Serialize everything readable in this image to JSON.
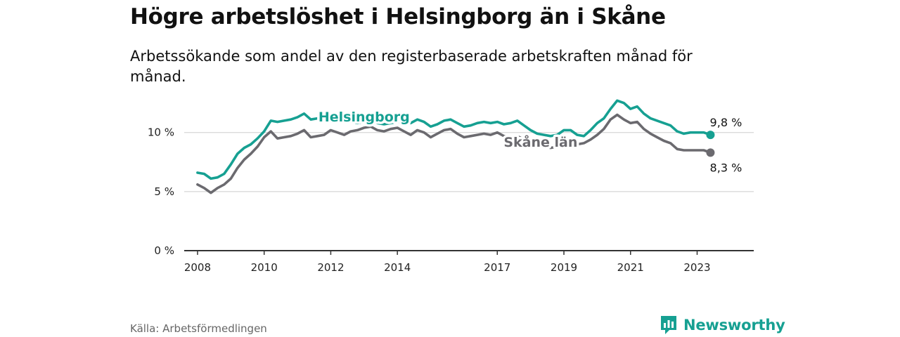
{
  "title": "Högre arbetslöshet i Helsingborg än i Skåne",
  "subtitle": "Arbetssökande som andel av den registerbaserade arbetskraften månad för månad.",
  "source": "Källa: Arbetsförmedlingen",
  "logo": {
    "text": "Newsworthy",
    "icon": "newsworthy-chart-icon"
  },
  "colors": {
    "helsingborg": "#16a092",
    "skane": "#6b6a6f",
    "grid": "#d6d6d6",
    "axis": "#333333"
  },
  "chart_data": {
    "type": "line",
    "x_unit": "year",
    "xlim": [
      2007.6,
      2024.7
    ],
    "ylim": [
      0,
      12.6
    ],
    "y_ticks": [
      {
        "value": 0,
        "label": "0 %"
      },
      {
        "value": 5,
        "label": "5 %"
      },
      {
        "value": 10,
        "label": "10 %"
      }
    ],
    "x_ticks": [
      {
        "value": 2008,
        "label": "2008"
      },
      {
        "value": 2010,
        "label": "2010"
      },
      {
        "value": 2012,
        "label": "2012"
      },
      {
        "value": 2014,
        "label": "2014"
      },
      {
        "value": 2017,
        "label": "2017"
      },
      {
        "value": 2019,
        "label": "2019"
      },
      {
        "value": 2021,
        "label": "2021"
      },
      {
        "value": 2023,
        "label": "2023"
      }
    ],
    "x": [
      2008.0,
      2008.2,
      2008.4,
      2008.6,
      2008.8,
      2009.0,
      2009.2,
      2009.4,
      2009.6,
      2009.8,
      2010.0,
      2010.2,
      2010.4,
      2010.6,
      2010.8,
      2011.0,
      2011.2,
      2011.4,
      2011.6,
      2011.8,
      2012.0,
      2012.2,
      2012.4,
      2012.6,
      2012.8,
      2013.0,
      2013.2,
      2013.4,
      2013.6,
      2013.8,
      2014.0,
      2014.2,
      2014.4,
      2014.6,
      2014.8,
      2015.0,
      2015.2,
      2015.4,
      2015.6,
      2015.8,
      2016.0,
      2016.2,
      2016.4,
      2016.6,
      2016.8,
      2017.0,
      2017.2,
      2017.4,
      2017.6,
      2017.8,
      2018.0,
      2018.2,
      2018.4,
      2018.6,
      2018.8,
      2019.0,
      2019.2,
      2019.4,
      2019.6,
      2019.8,
      2020.0,
      2020.2,
      2020.4,
      2020.6,
      2020.8,
      2021.0,
      2021.2,
      2021.4,
      2021.6,
      2021.8,
      2022.0,
      2022.2,
      2022.4,
      2022.6,
      2022.8,
      2023.0,
      2023.2,
      2023.4
    ],
    "series": [
      {
        "name": "Helsingborg",
        "label": "Helsingborg",
        "end_label": "9,8 %",
        "values": [
          6.6,
          6.5,
          6.1,
          6.2,
          6.5,
          7.3,
          8.2,
          8.7,
          9.0,
          9.5,
          10.1,
          11.0,
          10.9,
          11.0,
          11.1,
          11.3,
          11.6,
          11.1,
          11.2,
          11.4,
          11.4,
          11.2,
          11.0,
          10.9,
          10.8,
          10.9,
          11.0,
          10.8,
          10.7,
          10.8,
          10.9,
          10.9,
          10.8,
          11.1,
          10.9,
          10.5,
          10.7,
          11.0,
          11.1,
          10.8,
          10.5,
          10.6,
          10.8,
          10.9,
          10.8,
          10.9,
          10.7,
          10.8,
          11.0,
          10.6,
          10.2,
          9.9,
          9.8,
          9.7,
          9.8,
          10.2,
          10.2,
          9.8,
          9.7,
          10.2,
          10.8,
          11.2,
          12.0,
          12.7,
          12.5,
          12.0,
          12.2,
          11.6,
          11.2,
          11.0,
          10.8,
          10.6,
          10.1,
          9.9,
          10.0,
          10.0,
          10.0,
          9.8
        ]
      },
      {
        "name": "Skåne län",
        "label": "Skåne län",
        "end_label": "8,3 %",
        "values": [
          5.6,
          5.3,
          4.9,
          5.3,
          5.6,
          6.1,
          7.0,
          7.7,
          8.2,
          8.8,
          9.6,
          10.1,
          9.5,
          9.6,
          9.7,
          9.9,
          10.2,
          9.6,
          9.7,
          9.8,
          10.2,
          10.0,
          9.8,
          10.1,
          10.2,
          10.4,
          10.5,
          10.2,
          10.1,
          10.3,
          10.4,
          10.1,
          9.8,
          10.2,
          10.0,
          9.6,
          9.9,
          10.2,
          10.3,
          9.9,
          9.6,
          9.7,
          9.8,
          9.9,
          9.8,
          10.0,
          9.7,
          9.6,
          9.7,
          9.4,
          9.1,
          8.9,
          8.8,
          8.7,
          8.8,
          9.0,
          9.1,
          9.0,
          9.1,
          9.4,
          9.8,
          10.3,
          11.1,
          11.5,
          11.1,
          10.8,
          10.9,
          10.3,
          9.9,
          9.6,
          9.3,
          9.1,
          8.6,
          8.5,
          8.5,
          8.5,
          8.5,
          8.3
        ]
      }
    ]
  }
}
